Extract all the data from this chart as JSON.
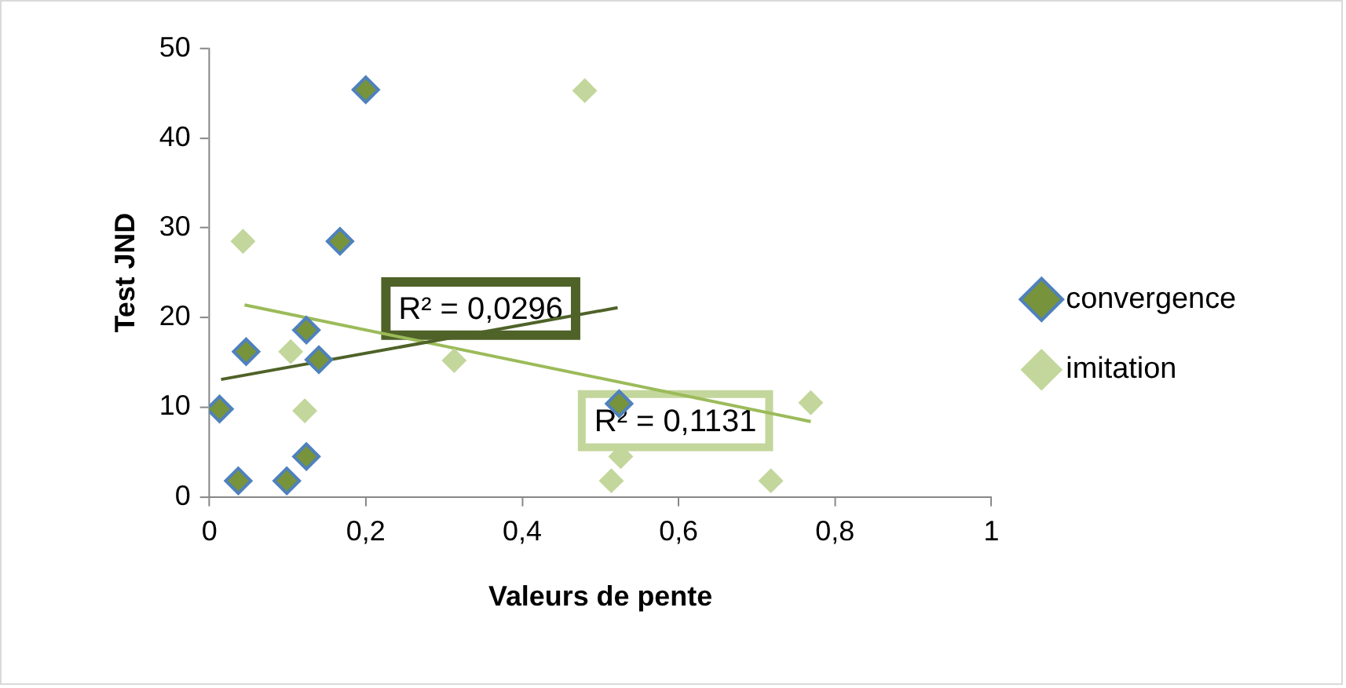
{
  "chart_data": {
    "type": "scatter",
    "xlabel": "Valeurs de pente",
    "ylabel": "Test JND",
    "xlim": [
      0,
      1
    ],
    "xticks": [
      0,
      {
        "value": 0.2,
        "label": "0,2"
      },
      {
        "value": 0.4,
        "label": "0,4"
      },
      {
        "value": 0.6,
        "label": "0,6"
      },
      {
        "value": 0.8,
        "label": "0,8"
      },
      1
    ],
    "ylim": [
      0,
      50
    ],
    "yticks": [
      0,
      10,
      20,
      30,
      40,
      50
    ],
    "grid": false,
    "legend": "right",
    "marker": "diamond",
    "series": [
      {
        "name": "convergence",
        "color": "#77933c",
        "x": [
          0.013,
          0.037,
          0.047,
          0.099,
          0.124,
          0.124,
          0.14,
          0.167,
          0.2,
          0.524
        ],
        "values": [
          9.8,
          1.8,
          16.2,
          1.8,
          4.5,
          18.6,
          15.3,
          28.5,
          45.4,
          10.4
        ]
      },
      {
        "name": "imitation",
        "color": "#c3d69b",
        "x": [
          0.043,
          0.104,
          0.122,
          0.313,
          0.48,
          0.514,
          0.526,
          0.718,
          0.769
        ],
        "values": [
          28.5,
          16.2,
          9.6,
          15.2,
          45.3,
          1.8,
          4.5,
          1.8,
          10.5
        ]
      },
      {
        "type": "line",
        "color": "#4f6228",
        "marker": "none",
        "x": [
          0.015,
          0.522
        ],
        "values": [
          13.1,
          21.1
        ]
      },
      {
        "type": "line",
        "color": "#9bbb59",
        "marker": "none",
        "x": [
          0.045,
          0.769
        ],
        "values": [
          21.4,
          8.4
        ]
      }
    ],
    "annotations": [
      "R² = 0,0296",
      "R² = 0,1131"
    ]
  }
}
